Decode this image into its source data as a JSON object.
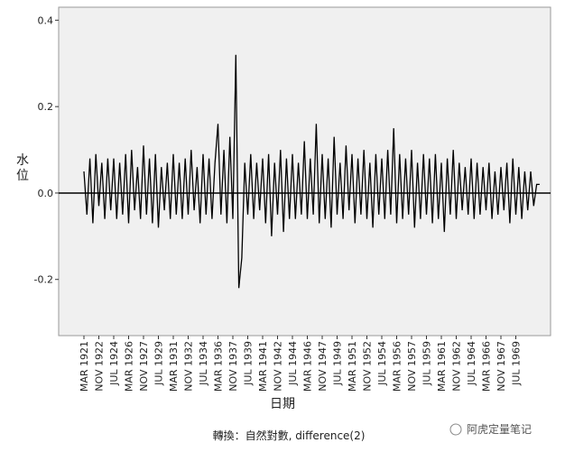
{
  "chart_data": {
    "type": "line",
    "y_label": "水位",
    "x_label": "日期",
    "footnote": "轉換：自然對數, difference(2)",
    "watermark": "阿虎定量笔记",
    "color": "#000000",
    "reference_line": 0,
    "ylim": [
      -0.33,
      0.43
    ],
    "yticks": [
      {
        "value": -0.2,
        "label": "-0.2"
      },
      {
        "value": 0,
        "label": "0.0"
      },
      {
        "value": 0.2,
        "label": "0.2"
      },
      {
        "value": 0.4,
        "label": "0.4"
      }
    ],
    "categories": [
      "MAR 1921",
      null,
      null,
      null,
      null,
      "NOV 1922",
      null,
      null,
      null,
      null,
      "JUL 1924",
      null,
      null,
      null,
      null,
      "MAR 1926",
      null,
      null,
      null,
      null,
      "NOV 1927",
      null,
      null,
      null,
      null,
      "JUL 1929",
      null,
      null,
      null,
      null,
      "MAR 1931",
      null,
      null,
      null,
      null,
      "NOV 1932",
      null,
      null,
      null,
      null,
      "JUL 1934",
      null,
      null,
      null,
      null,
      "MAR 1936",
      null,
      null,
      null,
      null,
      "NOV 1937",
      null,
      null,
      null,
      null,
      "JUL 1939",
      null,
      null,
      null,
      null,
      "MAR 1941",
      null,
      null,
      null,
      null,
      "NOV 1942",
      null,
      null,
      null,
      null,
      "JUL 1944",
      null,
      null,
      null,
      null,
      "MAR 1946",
      null,
      null,
      null,
      null,
      "NOV 1947",
      null,
      null,
      null,
      null,
      "JUL 1949",
      null,
      null,
      null,
      null,
      "MAR 1951",
      null,
      null,
      null,
      null,
      "NOV 1952",
      null,
      null,
      null,
      null,
      "JUL 1954",
      null,
      null,
      null,
      null,
      "MAR 1956",
      null,
      null,
      null,
      null,
      "NOV 1957",
      null,
      null,
      null,
      null,
      "JUL 1959",
      null,
      null,
      null,
      null,
      "MAR 1961",
      null,
      null,
      null,
      null,
      "NOV 1962",
      null,
      null,
      null,
      null,
      "JUL 1964",
      null,
      null,
      null,
      null,
      "MAR 1966",
      null,
      null,
      null,
      null,
      "NOV 1967",
      null,
      null,
      null,
      null,
      "JUL 1969",
      null,
      null,
      null,
      null,
      null,
      null,
      null,
      null
    ],
    "values": [
      0.05,
      -0.05,
      0.08,
      -0.07,
      0.09,
      -0.03,
      0.07,
      -0.06,
      0.08,
      -0.04,
      0.08,
      -0.06,
      0.07,
      -0.05,
      0.09,
      -0.07,
      0.1,
      -0.04,
      0.06,
      -0.06,
      0.11,
      -0.05,
      0.08,
      -0.07,
      0.09,
      -0.08,
      0.06,
      -0.04,
      0.07,
      -0.06,
      0.09,
      -0.05,
      0.07,
      -0.06,
      0.08,
      -0.05,
      0.1,
      -0.04,
      0.06,
      -0.07,
      0.09,
      -0.05,
      0.08,
      -0.06,
      0.07,
      0.16,
      -0.05,
      0.1,
      -0.07,
      0.13,
      -0.06,
      0.32,
      -0.22,
      -0.15,
      0.07,
      -0.05,
      0.09,
      -0.06,
      0.07,
      -0.04,
      0.08,
      -0.07,
      0.09,
      -0.1,
      0.07,
      -0.05,
      0.1,
      -0.09,
      0.08,
      -0.06,
      0.09,
      -0.06,
      0.07,
      -0.05,
      0.12,
      -0.06,
      0.08,
      -0.05,
      0.16,
      -0.07,
      0.09,
      -0.06,
      0.08,
      -0.08,
      0.13,
      -0.05,
      0.07,
      -0.06,
      0.11,
      -0.04,
      0.09,
      -0.07,
      0.08,
      -0.05,
      0.1,
      -0.06,
      0.07,
      -0.08,
      0.09,
      -0.05,
      0.08,
      -0.06,
      0.1,
      -0.05,
      0.15,
      -0.07,
      0.09,
      -0.06,
      0.08,
      -0.05,
      0.1,
      -0.08,
      0.07,
      -0.06,
      0.09,
      -0.05,
      0.08,
      -0.07,
      0.09,
      -0.06,
      0.07,
      -0.09,
      0.08,
      -0.05,
      0.1,
      -0.06,
      0.07,
      -0.04,
      0.06,
      -0.05,
      0.08,
      -0.06,
      0.07,
      -0.05,
      0.06,
      -0.04,
      0.07,
      -0.06,
      0.05,
      -0.05,
      0.06,
      -0.04,
      0.07,
      -0.07,
      0.08,
      -0.05,
      0.06,
      -0.06,
      0.05,
      -0.04,
      0.05,
      -0.03,
      0.02,
      0.02
    ]
  }
}
